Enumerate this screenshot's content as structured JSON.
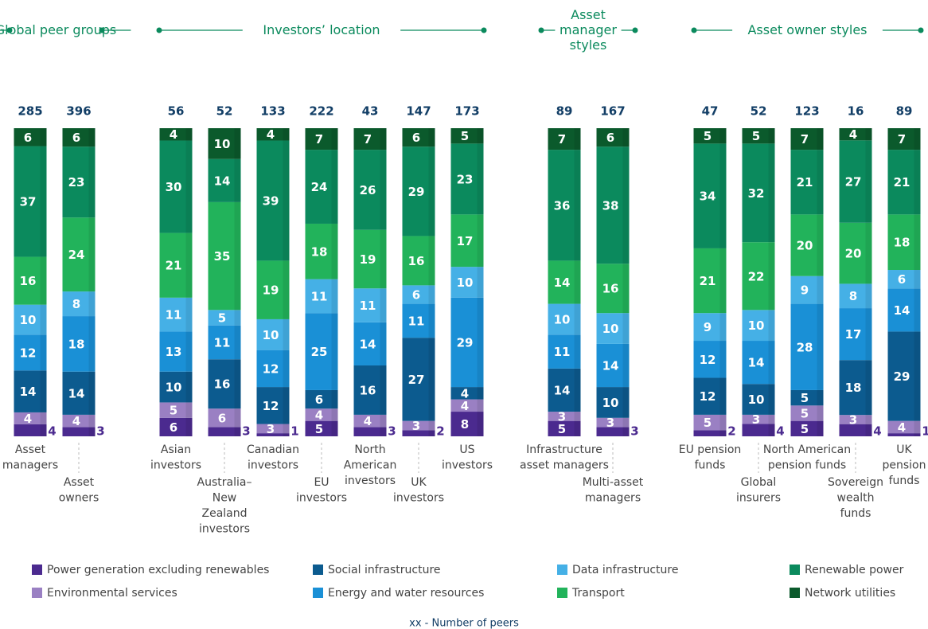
{
  "chart_data": {
    "type": "stacked_bar_100",
    "note_label": "xx  - Number of peers",
    "groups": [
      {
        "name": "Global peer groups",
        "categories": [
          "Asset\nmanagers",
          "Asset\nowners"
        ],
        "totals": [
          285,
          396
        ]
      },
      {
        "name": "Investors’ location",
        "categories": [
          "Asian\ninvestors",
          "Australia–\nNew\nZealand\ninvestors",
          "Canadian\ninvestors",
          "EU\ninvestors",
          "North\nAmerican\ninvestors",
          "UK\ninvestors",
          "US\ninvestors"
        ],
        "totals": [
          56,
          52,
          133,
          222,
          43,
          147,
          173
        ]
      },
      {
        "name": "Asset\nmanager\nstyles",
        "categories": [
          "Infrastructure\nasset managers",
          "Multi-asset\nmanagers"
        ],
        "totals": [
          89,
          167
        ]
      },
      {
        "name": "Asset owner styles",
        "categories": [
          "EU pension\nfunds",
          "Global\ninsurers",
          "North American\npension funds",
          "Sovereign\nwealth\nfunds",
          "UK\npension\nfunds"
        ],
        "totals": [
          47,
          52,
          123,
          16,
          89
        ]
      }
    ],
    "series": [
      {
        "name": "Power generation excluding renewables",
        "color": "#4b2a8f",
        "values": [
          4,
          3,
          6,
          3,
          1,
          5,
          3,
          2,
          8,
          5,
          3,
          2,
          4,
          5,
          4,
          1
        ]
      },
      {
        "name": "Environmental services",
        "color": "#9a80c3",
        "values": [
          4,
          4,
          5,
          6,
          3,
          4,
          4,
          3,
          4,
          3,
          3,
          5,
          3,
          5,
          3,
          4
        ]
      },
      {
        "name": "Social infrastructure",
        "color": "#0c5b8f",
        "values": [
          14,
          14,
          10,
          16,
          12,
          6,
          16,
          27,
          4,
          14,
          10,
          12,
          10,
          5,
          18,
          29
        ]
      },
      {
        "name": "Energy and water resources",
        "color": "#1a90d6",
        "values": [
          12,
          18,
          13,
          11,
          12,
          25,
          14,
          11,
          29,
          11,
          14,
          12,
          14,
          28,
          17,
          14
        ]
      },
      {
        "name": "Data infrastructure",
        "color": "#45b0e6",
        "values": [
          10,
          8,
          11,
          5,
          10,
          11,
          11,
          6,
          10,
          10,
          10,
          9,
          10,
          9,
          8,
          6
        ]
      },
      {
        "name": "Transport",
        "color": "#22b35b",
        "values": [
          16,
          24,
          21,
          35,
          19,
          18,
          19,
          16,
          17,
          14,
          16,
          21,
          22,
          20,
          20,
          18
        ]
      },
      {
        "name": "Renewable power",
        "color": "#0b8a5d",
        "values": [
          37,
          23,
          30,
          14,
          39,
          24,
          26,
          29,
          23,
          36,
          38,
          34,
          32,
          21,
          27,
          21
        ]
      },
      {
        "name": "Network utilities",
        "color": "#0b5a2c",
        "values": [
          6,
          6,
          4,
          10,
          4,
          7,
          7,
          6,
          5,
          7,
          6,
          5,
          5,
          7,
          4,
          7
        ]
      }
    ]
  }
}
